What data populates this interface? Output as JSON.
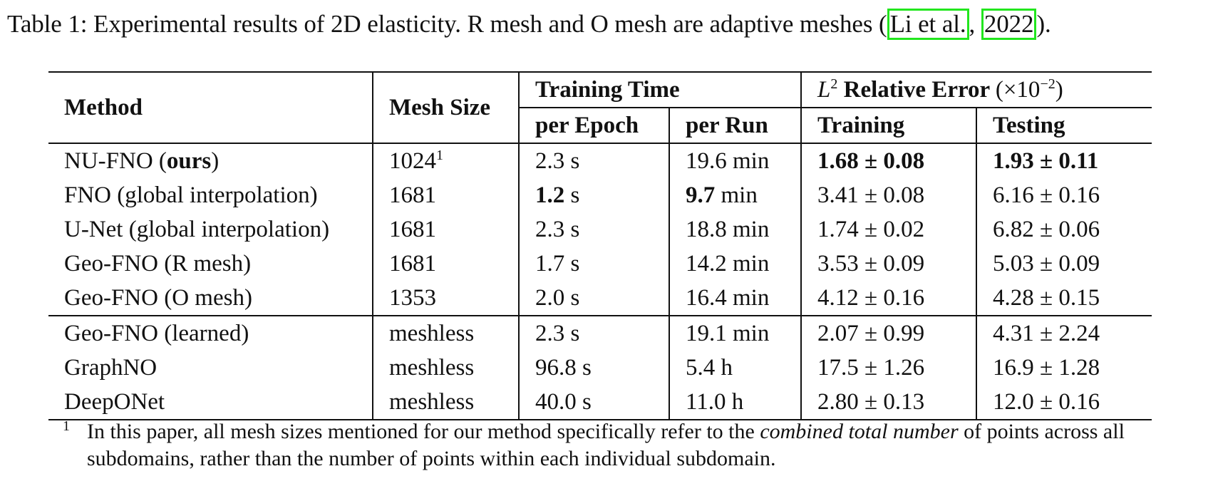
{
  "caption": {
    "prefix": "Table 1: Experimental results of 2D elasticity. R mesh and O mesh are adaptive meshes (",
    "cite_author": "Li et al.",
    "separator": ", ",
    "cite_year": "2022",
    "suffix": ")."
  },
  "table": {
    "headers": {
      "method": "Method",
      "mesh_size": "Mesh Size",
      "training_time": "Training Time",
      "per_epoch": "per Epoch",
      "per_run": "per Run",
      "error_prefix": "L",
      "error_exp": "2",
      "error_label": "Relative Error",
      "error_scale_open": "(×10",
      "error_scale_exp": "−2",
      "error_scale_close": ")",
      "training": "Training",
      "testing": "Testing"
    },
    "rows": [
      {
        "method_a": "NU-FNO (",
        "method_b": "ours",
        "method_c": ")",
        "mesh": "1024",
        "mesh_sup": "1",
        "epoch": "2.3 s",
        "run": "19.6 min",
        "train": "1.68 ± 0.08",
        "test": "1.93 ± 0.11"
      },
      {
        "method": "FNO (global interpolation)",
        "mesh": "1681",
        "epoch_num": "1.2",
        "epoch_unit": " s",
        "run_num": "9.7",
        "run_unit": " min",
        "train": "3.41 ± 0.08",
        "test": "6.16 ± 0.16"
      },
      {
        "method": "U-Net (global interpolation)",
        "mesh": "1681",
        "epoch": "2.3 s",
        "run": "18.8 min",
        "train": "1.74 ± 0.02",
        "test": "6.82 ± 0.06"
      },
      {
        "method": "Geo-FNO (R mesh)",
        "mesh": "1681",
        "epoch": "1.7 s",
        "run": "14.2 min",
        "train": "3.53 ± 0.09",
        "test": "5.03 ± 0.09"
      },
      {
        "method": "Geo-FNO (O mesh)",
        "mesh": "1353",
        "epoch": "2.0 s",
        "run": "16.4 min",
        "train": "4.12 ± 0.16",
        "test": "4.28 ± 0.15"
      },
      {
        "method": "Geo-FNO (learned)",
        "mesh": "meshless",
        "epoch": "2.3 s",
        "run": "19.1 min",
        "train": "2.07 ± 0.99",
        "test": "4.31 ± 2.24"
      },
      {
        "method": "GraphNO",
        "mesh": "meshless",
        "epoch": "96.8 s",
        "run": "5.4 h",
        "train": "17.5 ± 1.26",
        "test": "16.9 ± 1.28"
      },
      {
        "method": "DeepONet",
        "mesh": "meshless",
        "epoch": "40.0 s",
        "run": "11.0 h",
        "train": "2.80 ± 0.13",
        "test": "12.0 ± 0.16"
      }
    ]
  },
  "footnote": {
    "mark": "1",
    "text_a": "In this paper, all mesh sizes mentioned for our method specifically refer to the ",
    "text_em": "combined total number",
    "text_b": " of points across all subdomains, rather than the number of points within each individual subdomain."
  },
  "colors": {
    "citation_box": "#22e61e",
    "rule": "#111111"
  }
}
